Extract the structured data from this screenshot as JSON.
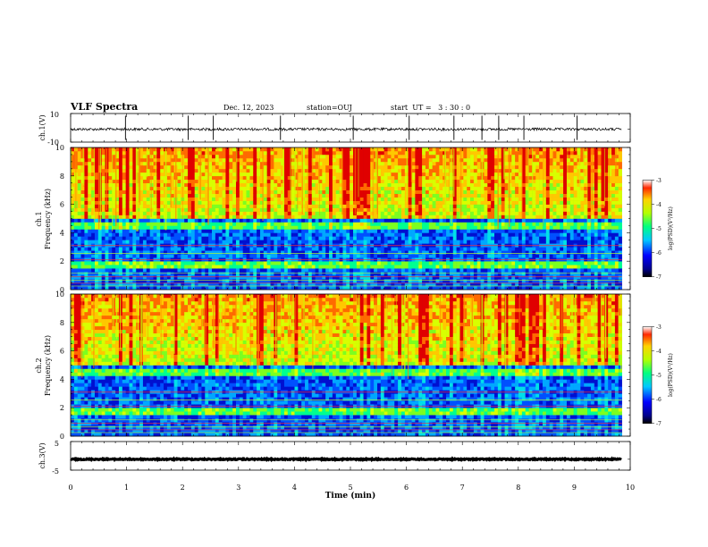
{
  "header": {
    "title": "VLF Spectra",
    "date": "Dec. 12, 2023",
    "station": "station=OUJ",
    "start_ut": "start  UT =   3 : 30 : 0"
  },
  "chart_data": [
    {
      "type": "line",
      "id": "ch1-waveform",
      "ylabel": "ch.1(V)",
      "ylim": [
        -10,
        10
      ],
      "yticks": [
        10,
        -10
      ],
      "baseline": -1,
      "spike_times_min": [
        0.98,
        2.1,
        2.55,
        3.75,
        5.05,
        6.05,
        6.85,
        7.35,
        7.65,
        8.1,
        9.05
      ]
    },
    {
      "type": "heatmap",
      "id": "ch1-spectrogram",
      "channel_label": "ch.1",
      "ylabel": "Frequency (kHz)",
      "ylim": [
        0,
        10
      ],
      "yticks": [
        0,
        2,
        4,
        6,
        8,
        10
      ],
      "xlim": [
        0,
        10
      ],
      "colorbar": {
        "label": "log(PSD)(V²/Hz)",
        "range": [
          -7,
          -3
        ],
        "ticks": [
          "-3",
          "-4",
          "-5",
          "-6",
          "-7"
        ]
      }
    },
    {
      "type": "heatmap",
      "id": "ch2-spectrogram",
      "channel_label": "ch.2",
      "ylabel": "Frequency (kHz)",
      "ylim": [
        0,
        10
      ],
      "yticks": [
        0,
        2,
        4,
        6,
        8,
        10
      ],
      "xlim": [
        0,
        10
      ],
      "colorbar": {
        "label": "log(PSD)(V²/Hz)",
        "range": [
          -7,
          -3
        ],
        "ticks": [
          "-3",
          "-4",
          "-5",
          "-6",
          "-7"
        ]
      }
    },
    {
      "type": "line",
      "id": "ch3-waveform",
      "ylabel": "ch.3(V)",
      "ylim": [
        -5,
        5
      ],
      "yticks": [
        5,
        -5
      ],
      "baseline": -1.2
    }
  ],
  "xaxis": {
    "label": "Time (min)",
    "range": [
      0,
      10
    ],
    "ticks": [
      "0",
      "1",
      "2",
      "3",
      "4",
      "5",
      "6",
      "7",
      "8",
      "9",
      "10"
    ],
    "data_end_min": 9.85
  }
}
